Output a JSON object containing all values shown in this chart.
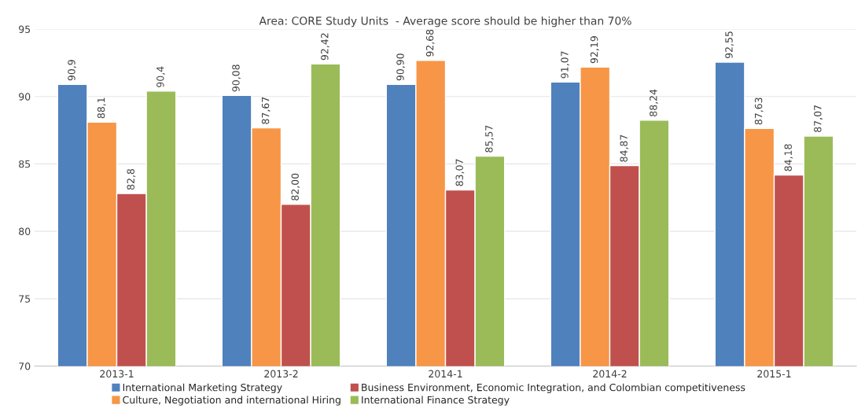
{
  "chart_data": {
    "type": "bar",
    "title": "Area: CORE Study Units  - Average score should be higher than 70%",
    "categories": [
      "2013-1",
      "2013-2",
      "2014-1",
      "2014-2",
      "2015-1"
    ],
    "series": [
      {
        "name": "International Marketing Strategy",
        "color": "#4f81bd",
        "values": [
          90.9,
          90.08,
          90.9,
          91.07,
          92.55
        ],
        "value_labels": [
          "90,9",
          "90,08",
          "90,90",
          "91,07",
          "92,55"
        ]
      },
      {
        "name": "Culture, Negotiation and international Hiring",
        "color": "#f79646",
        "values": [
          88.1,
          87.67,
          92.68,
          92.19,
          87.63
        ],
        "value_labels": [
          "88,1",
          "87,67",
          "92,68",
          "92,19",
          "87,63"
        ]
      },
      {
        "name": "Business Environment, Economic Integration, and Colombian competitiveness",
        "color": "#c0504d",
        "values": [
          82.8,
          82.0,
          83.07,
          84.87,
          84.18
        ],
        "value_labels": [
          "82,8",
          "82,00",
          "83,07",
          "84,87",
          "84,18"
        ]
      },
      {
        "name": "International Finance Strategy",
        "color": "#9bbb59",
        "values": [
          90.4,
          92.42,
          85.57,
          88.24,
          87.07
        ],
        "value_labels": [
          "90,4",
          "92,42",
          "85,57",
          "88,24",
          "87,07"
        ]
      }
    ],
    "ylim": [
      70,
      95
    ],
    "yticks": [
      70,
      75,
      80,
      85,
      90,
      95
    ],
    "grid": "y",
    "legend": "bottom"
  }
}
